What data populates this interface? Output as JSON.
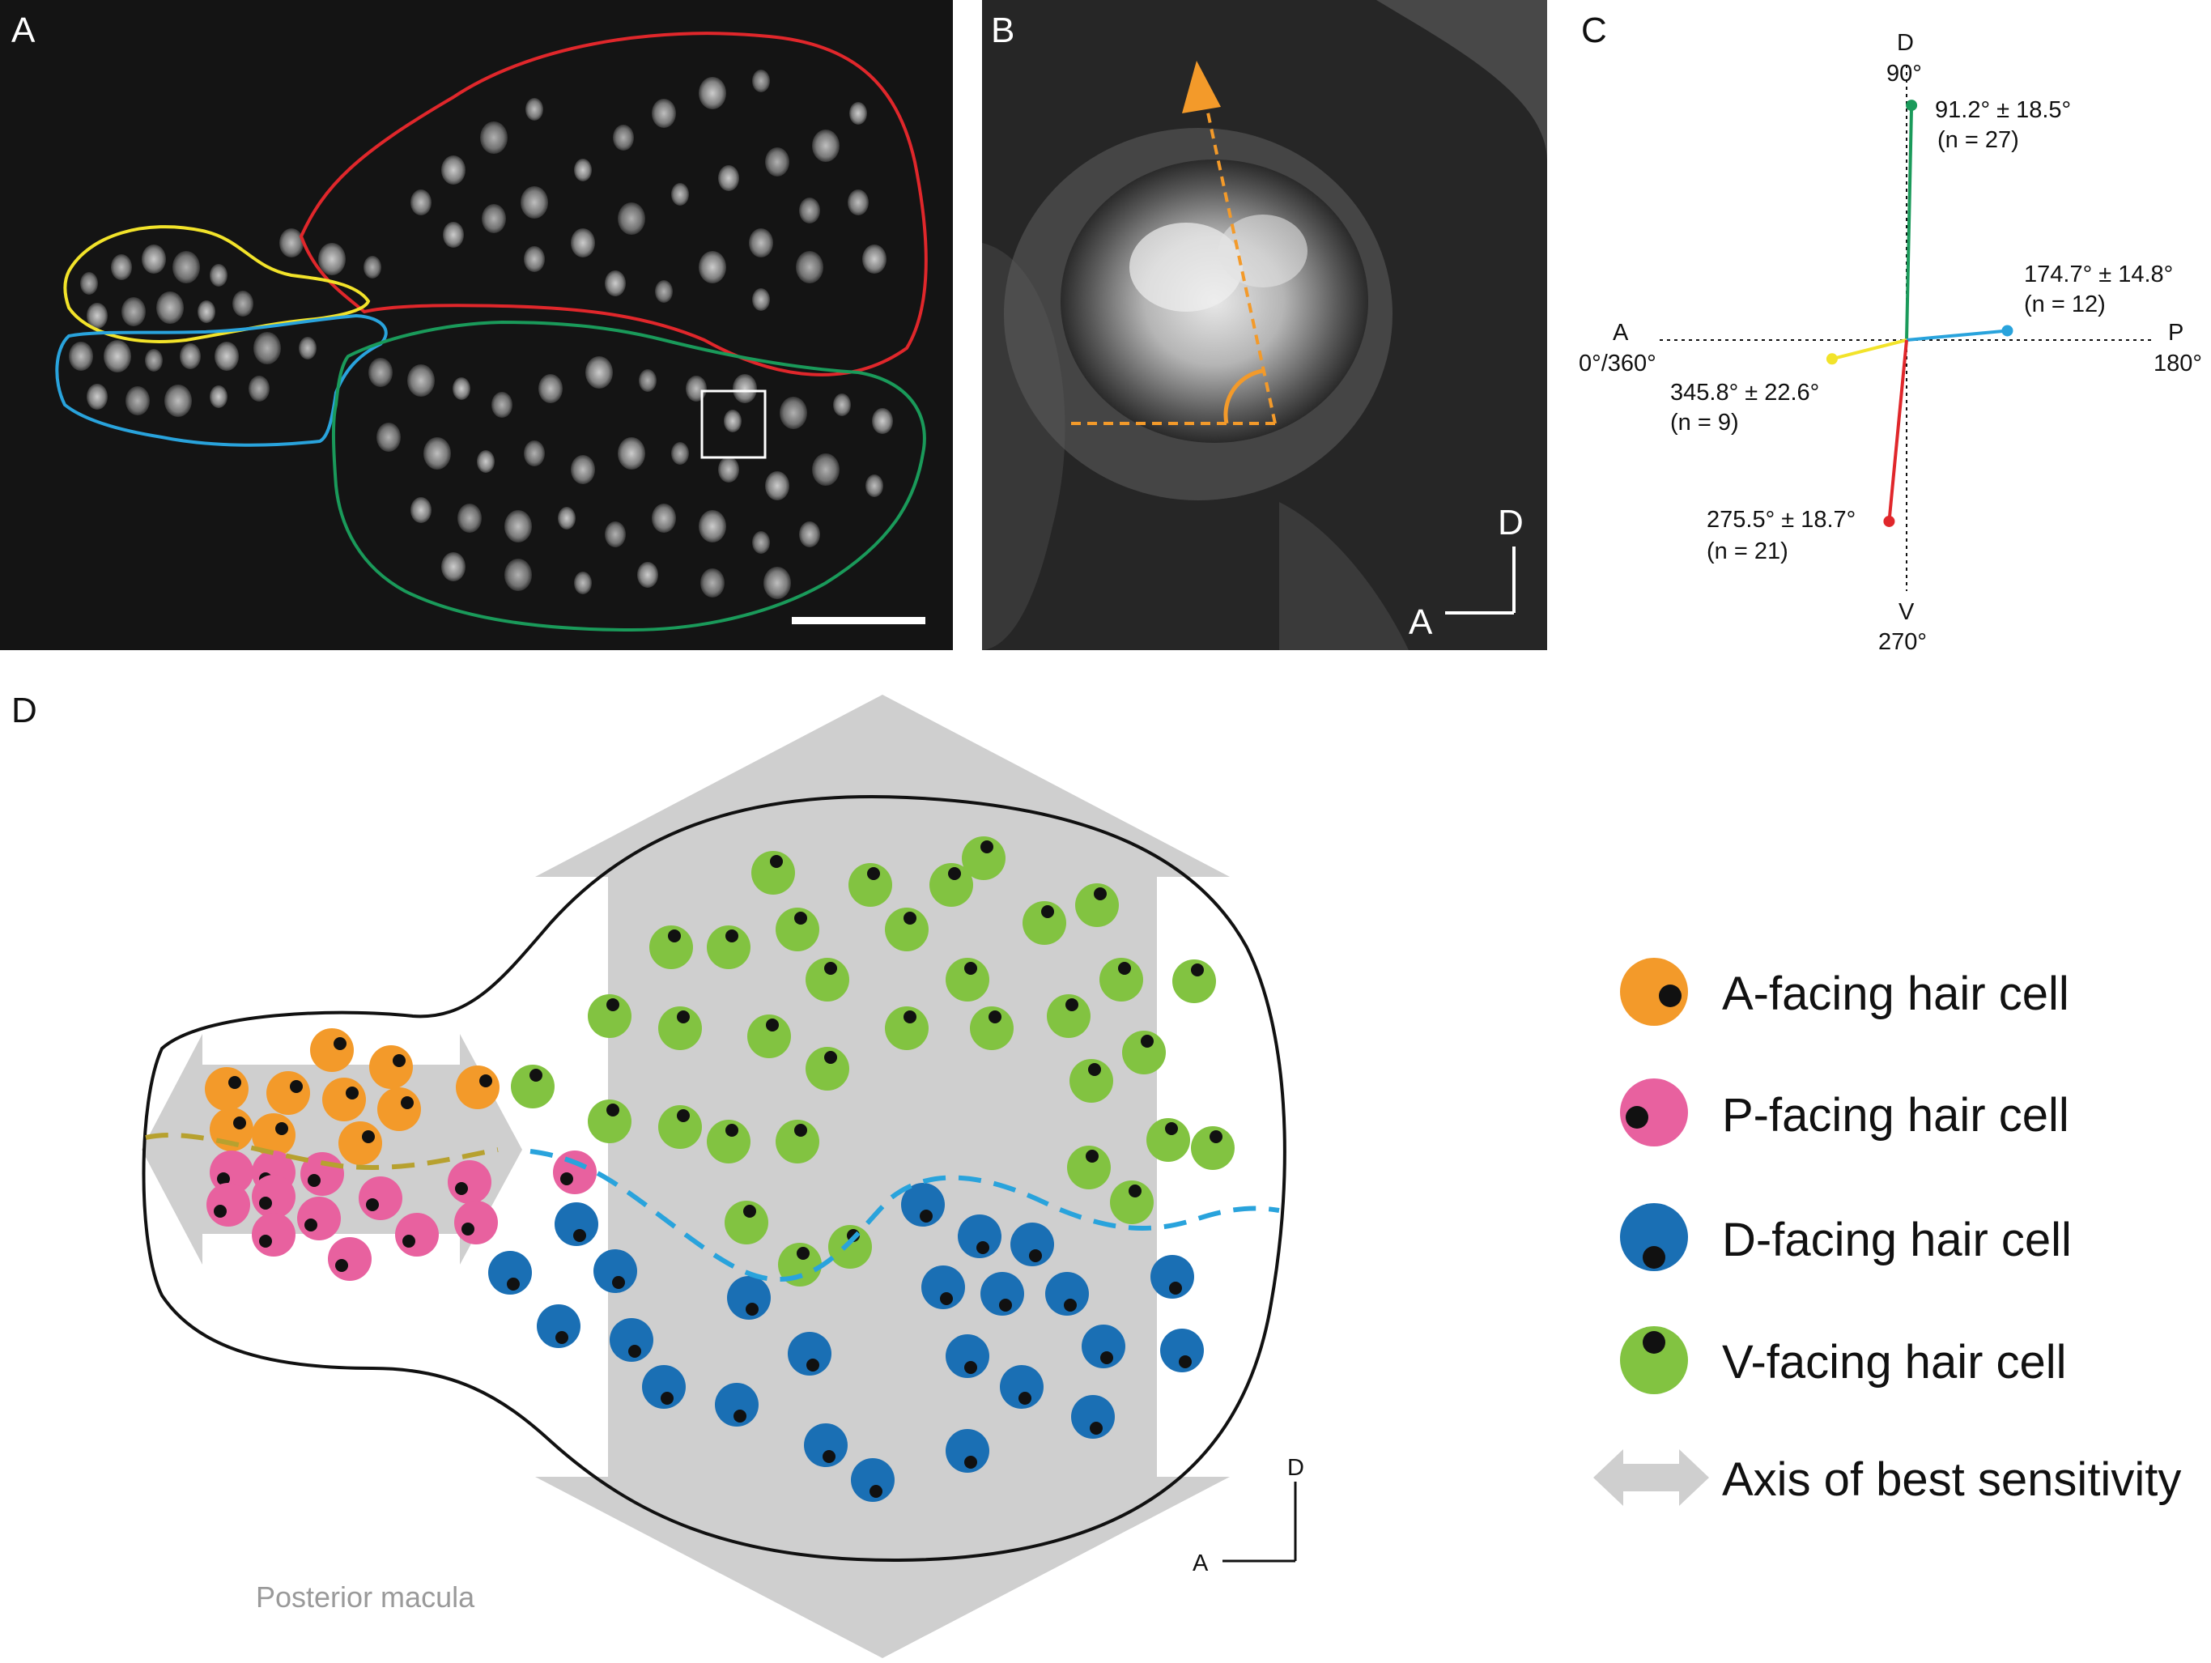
{
  "panel_labels": {
    "a": "A",
    "b": "B",
    "c": "C",
    "d": "D"
  },
  "panel_b": {
    "axis_d": "D",
    "axis_a": "A"
  },
  "panel_c": {
    "dir_d": "D",
    "dir_d_deg": "90°",
    "dir_a": "A",
    "dir_a_deg": "0°/360°",
    "dir_p": "P",
    "dir_p_deg": "180°",
    "dir_v": "V",
    "dir_v_deg": "270°",
    "green_mean": "91.2° ± 18.5°",
    "green_n": "(n = 27)",
    "blue_mean": "174.7° ± 14.8°",
    "blue_n": "(n = 12)",
    "yellow_mean": "345.8° ± 22.6°",
    "yellow_n": "(n = 9)",
    "red_mean": "275.5° ± 18.7°",
    "red_n": "(n = 21)"
  },
  "panel_c_vectors": [
    {
      "name": "green",
      "angle_deg": 91.2,
      "color": "#1a9a5a"
    },
    {
      "name": "blue",
      "angle_deg": 174.7,
      "color": "#29a3dc"
    },
    {
      "name": "yellow",
      "angle_deg": 345.8,
      "color": "#f2e32a"
    },
    {
      "name": "red",
      "angle_deg": 275.5,
      "color": "#e0272b"
    }
  ],
  "panel_d": {
    "axis_d": "D",
    "axis_a": "A",
    "caption": "Posterior macula"
  },
  "legend": {
    "a_facing": "A-facing hair cell",
    "p_facing": "P-facing hair cell",
    "d_facing": "D-facing hair cell",
    "v_facing": "V-facing hair cell",
    "axis": "Axis of best sensitivity"
  },
  "colors": {
    "a_facing": "#f39a2a",
    "p_facing": "#e8619f",
    "d_facing": "#1a6fb4",
    "v_facing": "#82c341",
    "axis_arrow": "#cfcfcf",
    "outline_red": "#e0272b",
    "outline_yellow": "#f2e32a",
    "outline_blue": "#29a3dc",
    "outline_green": "#1a9a5a",
    "arrow_orange": "#f39a2a"
  }
}
